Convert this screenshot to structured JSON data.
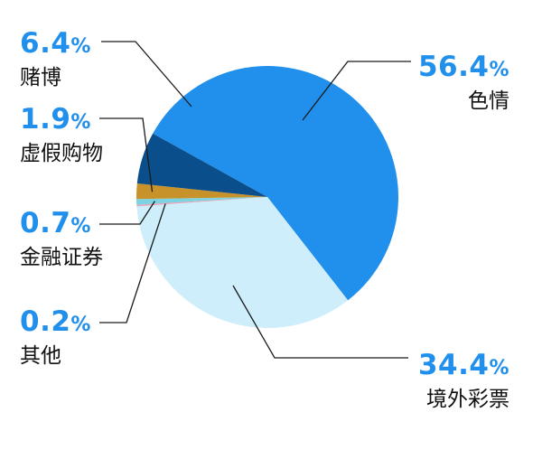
{
  "chart_data": {
    "type": "pie",
    "slices": [
      {
        "label": "色情",
        "value": 56.4,
        "display": "56.4",
        "color": "#2190ec"
      },
      {
        "label": "境外彩票",
        "value": 34.4,
        "display": "34.4",
        "color": "#cdeefa"
      },
      {
        "label": "其他",
        "value": 0.2,
        "display": "0.2",
        "color": "#e9a3b6"
      },
      {
        "label": "金融证券",
        "value": 0.7,
        "display": "0.7",
        "color": "#7dd3e2"
      },
      {
        "label": "虚假购物",
        "value": 1.9,
        "display": "1.9",
        "color": "#c8922b"
      },
      {
        "label": "赌博",
        "value": 6.4,
        "display": "6.4",
        "color": "#0a4f8c"
      }
    ],
    "percent_sign": "%",
    "label_color": "#2190ec"
  }
}
